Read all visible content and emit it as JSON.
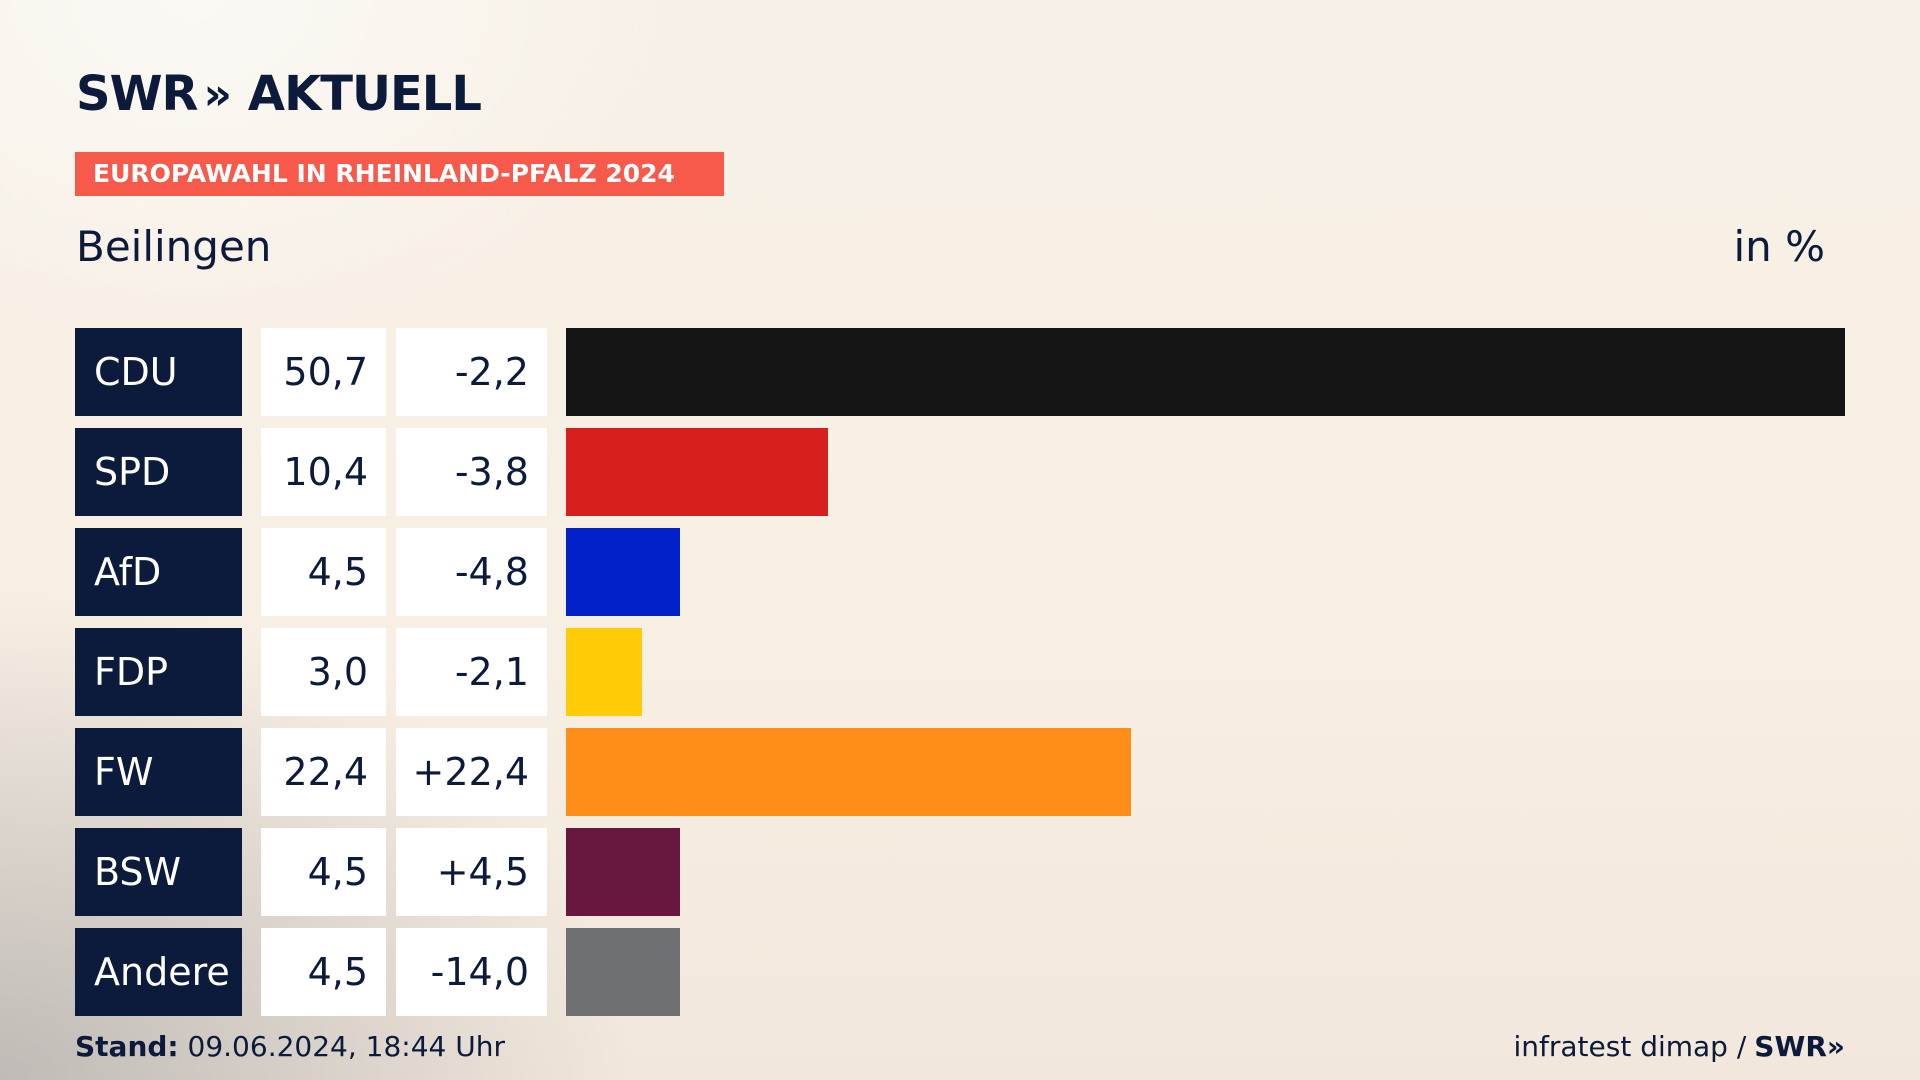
{
  "brand": {
    "logo_text": "SWR",
    "logo_chevrons": "»",
    "logo_suffix": "AKTUELL"
  },
  "banner": "EUROPAWAHL IN RHEINLAND-PFALZ 2024",
  "colors": {
    "navy": "#0c1a3c",
    "banner_red": "#f75a4b"
  },
  "chart_data": {
    "type": "bar",
    "title": "Beilingen",
    "unit": "in %",
    "orientation": "horizontal",
    "categories": [
      "CDU",
      "SPD",
      "AfD",
      "FDP",
      "FW",
      "BSW",
      "Andere"
    ],
    "values": [
      50.7,
      10.4,
      4.5,
      3.0,
      22.4,
      4.5,
      4.5
    ],
    "labels": [
      "50,7",
      "10,4",
      "4,5",
      "3,0",
      "22,4",
      "4,5",
      "4,5"
    ],
    "changes": [
      "-2,2",
      "-3,8",
      "-4,8",
      "-2,1",
      "+22,4",
      "+4,5",
      "-14,0"
    ],
    "bar_colors": [
      "#141414",
      "#d81f1f",
      "#0321c9",
      "#ffcc07",
      "#ff8e18",
      "#68183e",
      "#6f7072"
    ],
    "xlim": [
      0,
      50.7
    ]
  },
  "footer": {
    "stand_label": "Stand:",
    "stand_value": "09.06.2024, 18:44 Uhr",
    "source": "infratest dimap /",
    "source_logo": "SWR»"
  }
}
